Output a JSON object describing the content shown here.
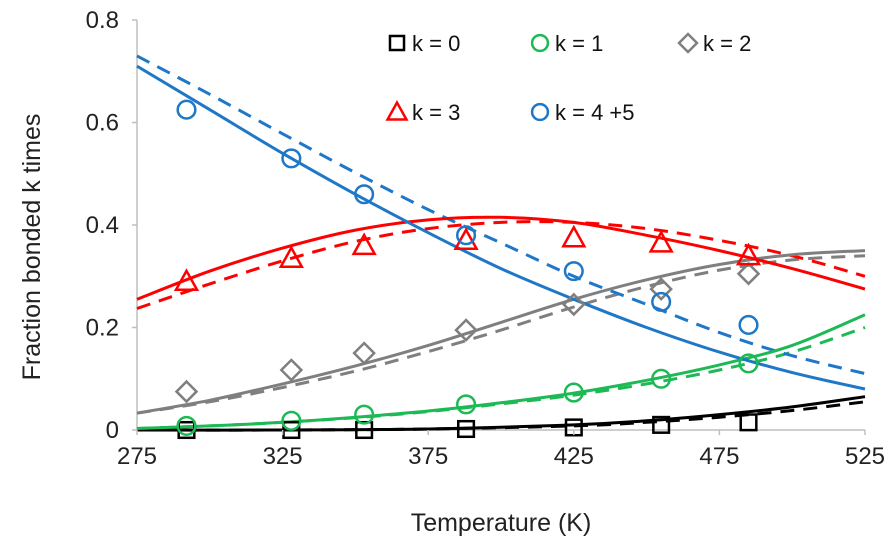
{
  "chart_data": {
    "type": "scatter",
    "title": "",
    "xlabel": "Temperature (K)",
    "ylabel": "Fraction bonded k times",
    "xlim": [
      275,
      525
    ],
    "ylim": [
      0,
      0.8
    ],
    "xticks": [
      275,
      325,
      375,
      425,
      475,
      525
    ],
    "yticks": [
      0,
      0.2,
      0.4,
      0.6,
      0.8
    ],
    "ytick_labels": [
      "0",
      "0.2",
      "0.4",
      "0.6",
      "0.8"
    ],
    "grid": false,
    "legend_position": "top-right",
    "series": [
      {
        "name": "k = 0",
        "color": "#000000",
        "marker": "square",
        "x": [
          292,
          328,
          353,
          388,
          425,
          455,
          485
        ],
        "y": [
          0.0,
          0.0,
          0.0,
          0.002,
          0.005,
          0.01,
          0.015
        ],
        "fit_solid": {
          "x": [
            275,
            325,
            375,
            425,
            450,
            475,
            500,
            525
          ],
          "y": [
            0.0,
            0.0,
            0.002,
            0.01,
            0.018,
            0.03,
            0.045,
            0.065
          ]
        },
        "fit_dashed": {
          "x": [
            275,
            325,
            375,
            425,
            450,
            475,
            500,
            525
          ],
          "y": [
            0.0,
            0.0,
            0.002,
            0.008,
            0.015,
            0.025,
            0.038,
            0.055
          ]
        }
      },
      {
        "name": "k = 1",
        "color": "#1db954",
        "marker": "circle",
        "x": [
          292,
          328,
          353,
          388,
          425,
          455,
          485
        ],
        "y": [
          0.008,
          0.018,
          0.03,
          0.05,
          0.073,
          0.1,
          0.13
        ],
        "fit_solid": {
          "x": [
            275,
            300,
            325,
            350,
            375,
            400,
            425,
            450,
            475,
            500,
            525
          ],
          "y": [
            0.003,
            0.008,
            0.015,
            0.025,
            0.037,
            0.053,
            0.072,
            0.097,
            0.127,
            0.165,
            0.225
          ]
        },
        "fit_dashed": {
          "x": [
            275,
            300,
            325,
            350,
            375,
            400,
            425,
            450,
            475,
            500,
            525
          ],
          "y": [
            0.003,
            0.008,
            0.015,
            0.024,
            0.036,
            0.051,
            0.068,
            0.09,
            0.117,
            0.152,
            0.2
          ]
        }
      },
      {
        "name": "k = 2",
        "color": "#7f7f7f",
        "marker": "diamond",
        "x": [
          292,
          328,
          353,
          388,
          425,
          455,
          485
        ],
        "y": [
          0.075,
          0.117,
          0.15,
          0.195,
          0.245,
          0.275,
          0.305
        ],
        "fit_solid": {
          "x": [
            275,
            300,
            325,
            350,
            375,
            400,
            425,
            450,
            475,
            500,
            525
          ],
          "y": [
            0.033,
            0.058,
            0.09,
            0.125,
            0.165,
            0.21,
            0.255,
            0.293,
            0.323,
            0.342,
            0.35
          ]
        },
        "fit_dashed": {
          "x": [
            275,
            300,
            325,
            350,
            375,
            400,
            425,
            450,
            475,
            500,
            525
          ],
          "y": [
            0.033,
            0.055,
            0.083,
            0.115,
            0.153,
            0.195,
            0.24,
            0.28,
            0.312,
            0.332,
            0.34
          ]
        }
      },
      {
        "name": "k = 3",
        "color": "#ff0000",
        "marker": "triangle",
        "x": [
          292,
          328,
          353,
          388,
          425,
          455,
          485
        ],
        "y": [
          0.29,
          0.335,
          0.36,
          0.37,
          0.375,
          0.365,
          0.34
        ],
        "fit_solid": {
          "x": [
            275,
            300,
            325,
            350,
            375,
            400,
            425,
            450,
            475,
            500,
            525
          ],
          "y": [
            0.255,
            0.31,
            0.355,
            0.39,
            0.41,
            0.415,
            0.405,
            0.38,
            0.35,
            0.315,
            0.275
          ]
        },
        "fit_dashed": {
          "x": [
            275,
            300,
            325,
            350,
            375,
            400,
            425,
            450,
            475,
            500,
            525
          ],
          "y": [
            0.237,
            0.285,
            0.33,
            0.368,
            0.393,
            0.405,
            0.405,
            0.393,
            0.37,
            0.34,
            0.3
          ]
        }
      },
      {
        "name": "k = 4 +5",
        "color": "#1f77c8",
        "marker": "circle",
        "x": [
          292,
          328,
          353,
          388,
          425,
          455,
          485
        ],
        "y": [
          0.625,
          0.53,
          0.46,
          0.38,
          0.31,
          0.25,
          0.205
        ],
        "fit_solid": {
          "x": [
            275,
            300,
            325,
            350,
            375,
            400,
            425,
            450,
            475,
            500,
            525
          ],
          "y": [
            0.71,
            0.625,
            0.54,
            0.46,
            0.385,
            0.315,
            0.255,
            0.2,
            0.152,
            0.112,
            0.08
          ]
        },
        "fit_dashed": {
          "x": [
            275,
            300,
            325,
            350,
            375,
            400,
            425,
            450,
            475,
            500,
            525
          ],
          "y": [
            0.73,
            0.655,
            0.578,
            0.502,
            0.43,
            0.365,
            0.3,
            0.245,
            0.19,
            0.145,
            0.11
          ]
        }
      }
    ]
  }
}
